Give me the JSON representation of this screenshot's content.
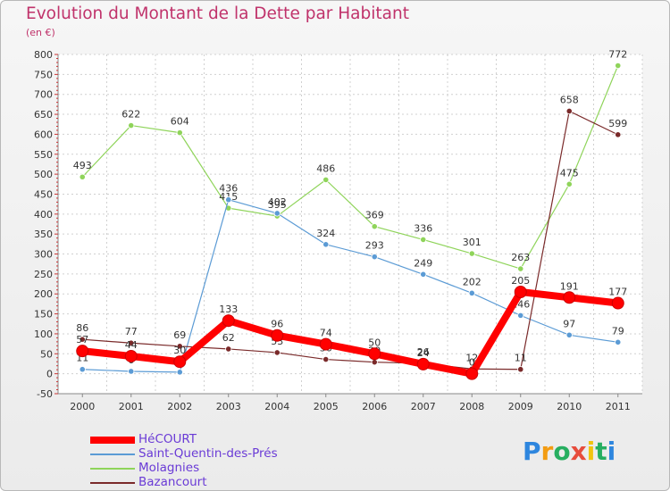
{
  "header": {
    "title": "Evolution du Montant de la Dette par Habitant",
    "subtitle": "(en €)"
  },
  "chart_data": {
    "type": "line",
    "title": "Evolution du Montant de la Dette par Habitant",
    "subtitle": "(en €)",
    "xlabel": "",
    "ylabel": "",
    "x": [
      "2000",
      "2001",
      "2002",
      "2003",
      "2004",
      "2005",
      "2006",
      "2007",
      "2008",
      "2009",
      "2010",
      "2011"
    ],
    "ylim": [
      -50,
      800
    ],
    "yticks": [
      -50,
      0,
      50,
      100,
      150,
      200,
      250,
      300,
      350,
      400,
      450,
      500,
      550,
      600,
      650,
      700,
      750,
      800
    ],
    "grid": true,
    "legend_position": "bottom-left",
    "series": [
      {
        "name": "HéCOURT",
        "color": "#ff0000",
        "values": [
          57,
          44,
          30,
          133,
          96,
          74,
          50,
          24,
          0,
          205,
          191,
          177
        ]
      },
      {
        "name": "Saint-Quentin-des-Prés",
        "color": "#5b9bd5",
        "values": [
          11,
          6,
          4,
          436,
          402,
          324,
          293,
          249,
          202,
          146,
          97,
          79
        ]
      },
      {
        "name": "Molagnies",
        "color": "#8fd45a",
        "values": [
          493,
          622,
          604,
          415,
          395,
          486,
          369,
          336,
          301,
          263,
          475,
          772
        ]
      },
      {
        "name": "Bazancourt",
        "color": "#7a2a2a",
        "values": [
          86,
          77,
          69,
          62,
          53,
          36,
          29,
          26,
          12,
          11,
          658,
          599
        ]
      }
    ]
  },
  "logo": {
    "letters": [
      "P",
      "r",
      "o",
      "x",
      "i",
      "t",
      "i"
    ],
    "colors": [
      "#2e86de",
      "#f39c12",
      "#27ae60",
      "#e74c3c",
      "#f1c40f",
      "#27ae60",
      "#2e86de"
    ]
  }
}
